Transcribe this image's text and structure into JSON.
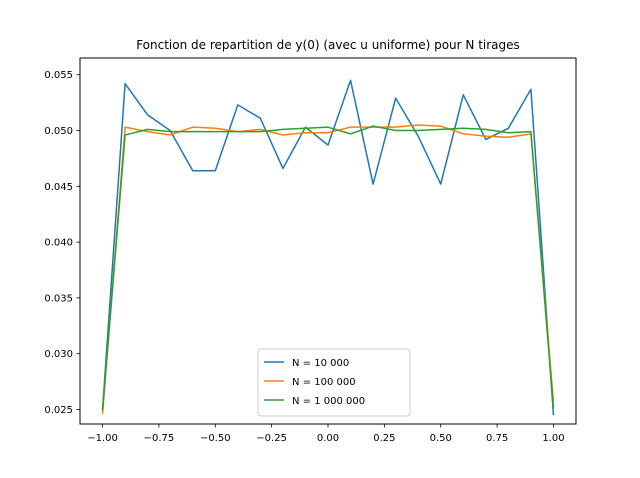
{
  "chart_data": {
    "type": "line",
    "title": "Fonction de repartition de y(0) (avec u uniforme) pour N tirages",
    "xlabel": "",
    "ylabel": "",
    "xlim": [
      -1.1,
      1.1
    ],
    "ylim": [
      0.0237,
      0.0565
    ],
    "xticks": [
      -1.0,
      -0.75,
      -0.5,
      -0.25,
      0.0,
      0.25,
      0.5,
      0.75,
      1.0
    ],
    "xtick_labels": [
      "−1.00",
      "−0.75",
      "−0.50",
      "−0.25",
      "0.00",
      "0.25",
      "0.50",
      "0.75",
      "1.00"
    ],
    "yticks": [
      0.025,
      0.03,
      0.035,
      0.04,
      0.045,
      0.05,
      0.055
    ],
    "ytick_labels": [
      "0.025",
      "0.030",
      "0.035",
      "0.040",
      "0.045",
      "0.050",
      "0.055"
    ],
    "grid": false,
    "legend_position": "lower center",
    "x": [
      -1.0,
      -0.9,
      -0.8,
      -0.7,
      -0.6,
      -0.5,
      -0.4,
      -0.3,
      -0.2,
      -0.1,
      0.0,
      0.1,
      0.2,
      0.3,
      0.4,
      0.5,
      0.6,
      0.7,
      0.8,
      0.9,
      1.0
    ],
    "series": [
      {
        "name": "N = 10 000",
        "color": "#1f77b4",
        "values": [
          0.025,
          0.0542,
          0.0514,
          0.05,
          0.0464,
          0.0464,
          0.0523,
          0.0511,
          0.0466,
          0.0503,
          0.0487,
          0.0545,
          0.0452,
          0.0529,
          0.0495,
          0.0452,
          0.0532,
          0.0492,
          0.0502,
          0.0537,
          0.0245
        ]
      },
      {
        "name": "N = 100 000",
        "color": "#ff7f0e",
        "values": [
          0.0246,
          0.0503,
          0.0499,
          0.0496,
          0.0503,
          0.0502,
          0.0499,
          0.0501,
          0.0496,
          0.0498,
          0.0498,
          0.0503,
          0.0503,
          0.0503,
          0.0505,
          0.0504,
          0.0497,
          0.0495,
          0.0494,
          0.0497,
          0.0257
        ]
      },
      {
        "name": "N = 1 000 000",
        "color": "#2ca02c",
        "values": [
          0.0249,
          0.0496,
          0.0501,
          0.0499,
          0.0499,
          0.0499,
          0.0499,
          0.0499,
          0.0501,
          0.0502,
          0.0503,
          0.0497,
          0.0504,
          0.05,
          0.05,
          0.0501,
          0.0502,
          0.0501,
          0.0498,
          0.0499,
          0.0251
        ]
      }
    ]
  }
}
